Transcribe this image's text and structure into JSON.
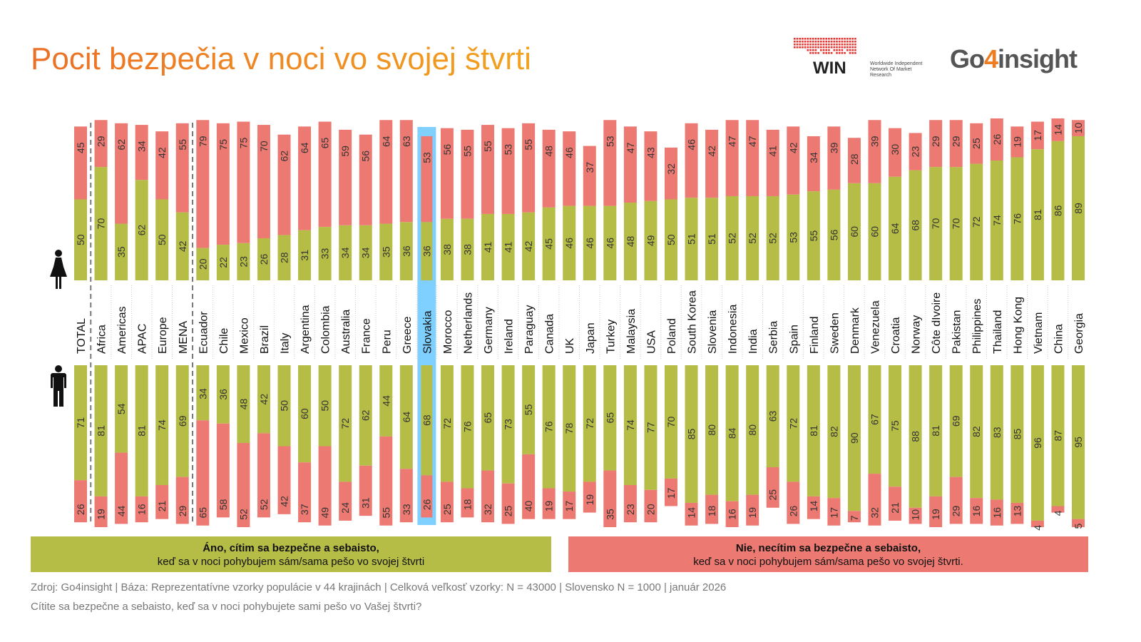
{
  "title": "Pocit bezpečia v noci vo svojej štvrti",
  "logos": {
    "win": "WIN",
    "win_sub": "Worldwide Independent Network Of Market Research",
    "go4_prefix": "Go",
    "go4_four": "4",
    "go4_suffix": "insight"
  },
  "colors": {
    "yes": "#b5bd46",
    "no": "#ec7a72",
    "highlight": "#7fcfff",
    "title": "#ee7d22"
  },
  "chart_data": {
    "type": "bar",
    "stacked": true,
    "orientation": "vertical",
    "highlight": "Slovakia",
    "categories": [
      "TOTAL",
      "Africa",
      "Americas",
      "APAC",
      "Europe",
      "MENA",
      "Ecuador",
      "Chile",
      "Mexico",
      "Brazil",
      "Italy",
      "Argentina",
      "Colombia",
      "Australia",
      "France",
      "Peru",
      "Greece",
      "Slovakia",
      "Morocco",
      "Netherlands",
      "Germany",
      "Ireland",
      "Paraguay",
      "Canada",
      "UK",
      "Japan",
      "Turkey",
      "Malaysia",
      "USA",
      "Poland",
      "South Korea",
      "Slovenia",
      "Indonesia",
      "India",
      "Serbia",
      "Spain",
      "Finland",
      "Sweden",
      "Denmark",
      "Venezuela",
      "Croatia",
      "Norway",
      "Côte dIvoire",
      "Pakistan",
      "Philippines",
      "Thailand",
      "Hong Kong",
      "Vietnam",
      "China",
      "Georgia"
    ],
    "panels": [
      {
        "group_icon": "woman-icon",
        "series": [
          {
            "name": "Áno",
            "values": [
              50,
              70,
              35,
              62,
              50,
              42,
              20,
              22,
              23,
              26,
              28,
              31,
              33,
              34,
              34,
              35,
              36,
              36,
              38,
              38,
              41,
              41,
              42,
              45,
              46,
              46,
              46,
              48,
              49,
              50,
              51,
              51,
              52,
              52,
              52,
              53,
              55,
              56,
              60,
              60,
              64,
              68,
              70,
              70,
              72,
              74,
              76,
              81,
              86,
              89
            ]
          },
          {
            "name": "Nie",
            "values": [
              45,
              29,
              62,
              34,
              42,
              55,
              79,
              75,
              75,
              70,
              62,
              64,
              65,
              59,
              56,
              64,
              63,
              53,
              56,
              55,
              55,
              53,
              55,
              48,
              46,
              37,
              53,
              47,
              43,
              32,
              46,
              42,
              47,
              47,
              41,
              42,
              34,
              39,
              28,
              39,
              30,
              23,
              29,
              29,
              25,
              26,
              19,
              17,
              14,
              10
            ]
          }
        ]
      },
      {
        "group_icon": "man-icon",
        "series": [
          {
            "name": "Áno",
            "values": [
              71,
              81,
              54,
              81,
              74,
              69,
              34,
              36,
              48,
              42,
              50,
              60,
              50,
              72,
              62,
              44,
              64,
              68,
              72,
              76,
              65,
              73,
              55,
              76,
              78,
              72,
              65,
              74,
              77,
              70,
              85,
              80,
              84,
              80,
              63,
              72,
              81,
              82,
              90,
              67,
              75,
              88,
              81,
              69,
              82,
              83,
              85,
              96,
              87,
              95
            ]
          },
          {
            "name": "Nie",
            "values": [
              26,
              19,
              44,
              16,
              21,
              29,
              65,
              58,
              52,
              52,
              42,
              37,
              49,
              24,
              31,
              55,
              33,
              26,
              25,
              18,
              32,
              25,
              40,
              19,
              17,
              19,
              35,
              23,
              20,
              17,
              14,
              18,
              16,
              19,
              25,
              26,
              14,
              17,
              7,
              32,
              21,
              10,
              19,
              29,
              16,
              16,
              13,
              4,
              4,
              5
            ]
          }
        ]
      }
    ],
    "ylim": [
      0,
      100
    ]
  },
  "legend": {
    "yes_bold": "Áno, cítim sa bezpečne a sebaisto,",
    "yes_text": "keď sa v noci pohybujem sám/sama pešo vo svojej štvrti",
    "no_bold": "Nie, necítim sa bezpečne a sebaisto,",
    "no_text": "keď sa v noci pohybujem sám/sama pešo vo svojej štvrti."
  },
  "footer": {
    "source": "Zdroj: Go4insight | Báza: Reprezentatívne vzorky populácie v 44 krajinách | Celková veľkosť vzorky: N = 43000 | Slovensko N = 1000 | január 2026",
    "question": "Cítite sa bezpečne a sebaisto, keď sa v noci pohybujete sami pešo vo Vašej štvrti?"
  }
}
